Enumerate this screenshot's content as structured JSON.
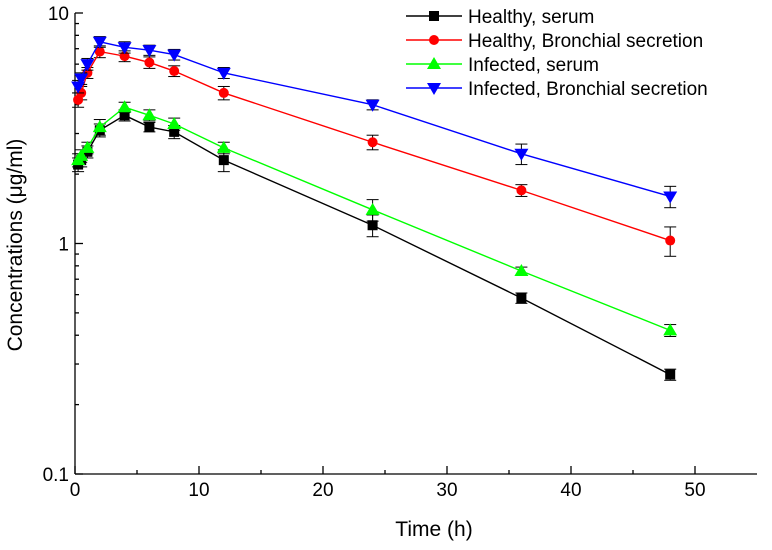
{
  "chart_data": {
    "type": "line",
    "title": "",
    "xlabel": "Time (h)",
    "ylabel": "Concentrations (μg/ml)",
    "xlim": [
      0,
      55
    ],
    "ylim": [
      0.1,
      10
    ],
    "yscale": "log",
    "x_ticks": [
      0,
      10,
      20,
      30,
      40,
      50
    ],
    "x_tick_labels": [
      "0",
      "10",
      "20",
      "30",
      "40",
      "50"
    ],
    "y_ticks": [
      0.1,
      1,
      10
    ],
    "y_tick_labels": [
      "0.1",
      "1",
      "10"
    ],
    "grid": false,
    "legend_position": "top-right",
    "series": [
      {
        "name": "Healthy, serum",
        "color": "#000000",
        "marker": "square",
        "x": [
          0.25,
          0.5,
          1,
          2,
          4,
          6,
          8,
          12,
          24,
          36,
          48
        ],
        "y": [
          2.2,
          2.3,
          2.5,
          3.1,
          3.6,
          3.2,
          3.05,
          2.3,
          1.2,
          0.58,
          0.27
        ],
        "err": [
          0.15,
          0.15,
          0.15,
          0.2,
          0.2,
          0.15,
          0.2,
          0.25,
          0.13,
          0.03,
          0.015
        ]
      },
      {
        "name": "Healthy, Bronchial secretion",
        "color": "#ff0000",
        "marker": "circle",
        "x": [
          0.25,
          0.5,
          1,
          2,
          4,
          6,
          8,
          12,
          24,
          36,
          48
        ],
        "y": [
          4.2,
          4.5,
          5.5,
          6.8,
          6.5,
          6.1,
          5.6,
          4.5,
          2.75,
          1.7,
          1.03
        ],
        "err": [
          0.3,
          0.3,
          0.3,
          0.4,
          0.35,
          0.35,
          0.3,
          0.3,
          0.2,
          0.1,
          0.15
        ]
      },
      {
        "name": "Infected, serum",
        "color": "#00ff00",
        "marker": "triangle-up",
        "x": [
          0.25,
          0.5,
          1,
          2,
          4,
          6,
          8,
          12,
          24,
          36,
          48
        ],
        "y": [
          2.3,
          2.4,
          2.6,
          3.2,
          3.9,
          3.6,
          3.3,
          2.6,
          1.4,
          0.76,
          0.42
        ],
        "err": [
          0.15,
          0.15,
          0.15,
          0.25,
          0.2,
          0.2,
          0.2,
          0.15,
          0.15,
          0.03,
          0.025
        ]
      },
      {
        "name": "Infected, Bronchial secretion",
        "color": "#0000ff",
        "marker": "triangle-down",
        "x": [
          0.25,
          0.5,
          1,
          2,
          4,
          6,
          8,
          12,
          24,
          36,
          48
        ],
        "y": [
          4.8,
          5.2,
          6.0,
          7.5,
          7.1,
          6.9,
          6.6,
          5.5,
          4.0,
          2.45,
          1.6
        ],
        "err": [
          0.3,
          0.3,
          0.35,
          0.4,
          0.4,
          0.35,
          0.35,
          0.3,
          0.2,
          0.25,
          0.17
        ]
      }
    ]
  }
}
